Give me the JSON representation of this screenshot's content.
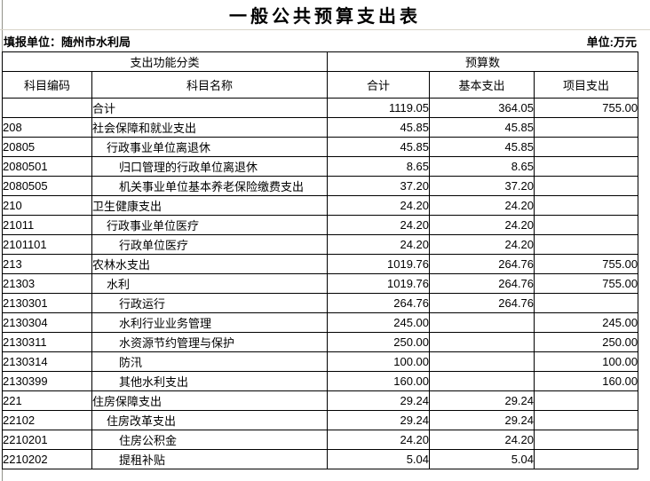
{
  "title": "一般公共预算支出表",
  "meta": {
    "reporting_unit": "填报单位：随州市水利局",
    "unit": "单位:万元"
  },
  "table": {
    "header": {
      "group_function": "支出功能分类",
      "group_budget": "预算数",
      "code": "科目编码",
      "name": "科目名称",
      "total": "合计",
      "basic": "基本支出",
      "project": "项目支出"
    },
    "rows": [
      {
        "code": "",
        "name": "合计",
        "level": 0,
        "total": "1119.05",
        "basic": "364.05",
        "project": "755.00"
      },
      {
        "code": "208",
        "name": "社会保障和就业支出",
        "level": 0,
        "total": "45.85",
        "basic": "45.85",
        "project": ""
      },
      {
        "code": "20805",
        "name": "行政事业单位离退休",
        "level": 1,
        "total": "45.85",
        "basic": "45.85",
        "project": ""
      },
      {
        "code": "2080501",
        "name": "归口管理的行政单位离退休",
        "level": 2,
        "total": "8.65",
        "basic": "8.65",
        "project": ""
      },
      {
        "code": "2080505",
        "name": "机关事业单位基本养老保险缴费支出",
        "level": 2,
        "total": "37.20",
        "basic": "37.20",
        "project": ""
      },
      {
        "code": "210",
        "name": "卫生健康支出",
        "level": 0,
        "total": "24.20",
        "basic": "24.20",
        "project": ""
      },
      {
        "code": "21011",
        "name": "行政事业单位医疗",
        "level": 1,
        "total": "24.20",
        "basic": "24.20",
        "project": ""
      },
      {
        "code": "2101101",
        "name": "行政单位医疗",
        "level": 2,
        "total": "24.20",
        "basic": "24.20",
        "project": ""
      },
      {
        "code": "213",
        "name": "农林水支出",
        "level": 0,
        "total": "1019.76",
        "basic": "264.76",
        "project": "755.00"
      },
      {
        "code": "21303",
        "name": "水利",
        "level": 1,
        "total": "1019.76",
        "basic": "264.76",
        "project": "755.00"
      },
      {
        "code": "2130301",
        "name": "行政运行",
        "level": 2,
        "total": "264.76",
        "basic": "264.76",
        "project": ""
      },
      {
        "code": "2130304",
        "name": "水利行业业务管理",
        "level": 2,
        "total": "245.00",
        "basic": "",
        "project": "245.00"
      },
      {
        "code": "2130311",
        "name": "水资源节约管理与保护",
        "level": 2,
        "total": "250.00",
        "basic": "",
        "project": "250.00"
      },
      {
        "code": "2130314",
        "name": "防汛",
        "level": 2,
        "total": "100.00",
        "basic": "",
        "project": "100.00"
      },
      {
        "code": "2130399",
        "name": "其他水利支出",
        "level": 2,
        "total": "160.00",
        "basic": "",
        "project": "160.00"
      },
      {
        "code": "221",
        "name": "住房保障支出",
        "level": 0,
        "total": "29.24",
        "basic": "29.24",
        "project": ""
      },
      {
        "code": "22102",
        "name": "住房改革支出",
        "level": 1,
        "total": "29.24",
        "basic": "29.24",
        "project": ""
      },
      {
        "code": "2210201",
        "name": "住房公积金",
        "level": 2,
        "total": "24.20",
        "basic": "24.20",
        "project": ""
      },
      {
        "code": "2210202",
        "name": "提租补贴",
        "level": 2,
        "total": "5.04",
        "basic": "5.04",
        "project": ""
      }
    ]
  },
  "colors": {
    "background": "#ffffff",
    "text": "#000000",
    "table_border": "#000000",
    "edge_line": "#92928a",
    "faint_gridline": "#d9d5c9"
  }
}
